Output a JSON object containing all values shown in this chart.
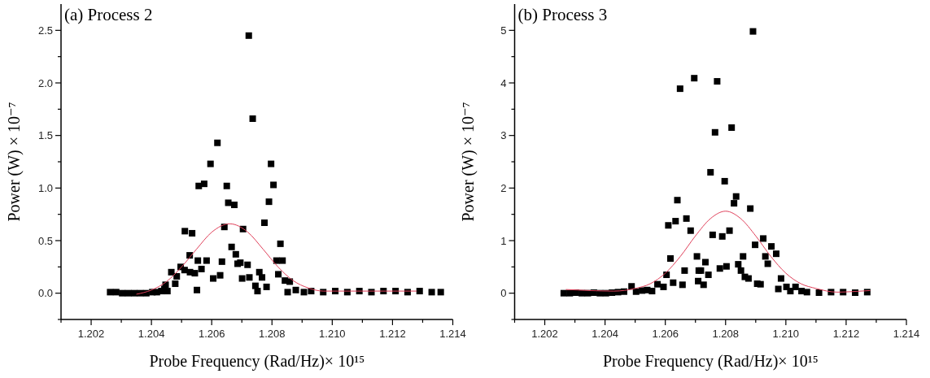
{
  "chart_data": [
    {
      "type": "scatter",
      "title": "(a) Process 2",
      "xlabel": "Probe Frequency (Rad/Hz)× 10¹⁵",
      "ylabel": "Power (W) × 10⁻⁷",
      "marker": "square",
      "grid": false,
      "xlim": [
        1.201,
        1.214
      ],
      "xticks": [
        {
          "value": 1.201,
          "label": null
        },
        1.202,
        {
          "value": 1.203,
          "label": null
        },
        1.204,
        {
          "value": 1.205,
          "label": null
        },
        1.206,
        {
          "value": 1.207,
          "label": null
        },
        1.208,
        {
          "value": 1.209,
          "label": null
        },
        {
          "value": 1.21,
          "label": "1.210"
        },
        {
          "value": 1.211,
          "label": null
        },
        1.212,
        {
          "value": 1.213,
          "label": null
        },
        1.214
      ],
      "ylim": [
        -0.25,
        2.75
      ],
      "yticks": [
        {
          "value": -0.25,
          "label": null
        },
        {
          "value": 0,
          "label": "0.0"
        },
        {
          "value": 0.25,
          "label": null
        },
        0.5,
        {
          "value": 0.75,
          "label": null
        },
        {
          "value": 1,
          "label": "1.0"
        },
        {
          "value": 1.25,
          "label": null
        },
        1.5,
        {
          "value": 1.75,
          "label": null
        },
        {
          "value": 2,
          "label": "2.0"
        },
        {
          "value": 2.25,
          "label": null
        },
        2.5
      ],
      "series": [
        {
          "type": "scatter",
          "color": "#000000",
          "x": [
            1.20263,
            1.20283,
            1.20303,
            1.20323,
            1.20343,
            1.20363,
            1.20383,
            1.20403,
            1.20418,
            1.20433,
            1.20443,
            1.20447,
            1.20453,
            1.20466,
            1.20479,
            1.20484,
            1.20497,
            1.2051,
            1.20511,
            1.20527,
            1.20528,
            1.20535,
            1.20544,
            1.20551,
            1.20554,
            1.20557,
            1.20566,
            1.20575,
            1.20583,
            1.20596,
            1.20605,
            1.20619,
            1.20628,
            1.20634,
            1.20642,
            1.2065,
            1.20655,
            1.20666,
            1.20675,
            1.2068,
            1.20686,
            1.20695,
            1.20701,
            1.20704,
            1.20719,
            1.20723,
            1.20725,
            1.20736,
            1.20745,
            1.20752,
            1.20758,
            1.20767,
            1.20775,
            1.20782,
            1.2079,
            1.20797,
            1.20805,
            1.20815,
            1.20821,
            1.20828,
            1.20835,
            1.20843,
            1.20852,
            1.20859,
            1.20879,
            1.20906,
            1.2093,
            1.2097,
            1.2101,
            1.2105,
            1.2109,
            1.2113,
            1.2117,
            1.2121,
            1.2125,
            1.2129,
            1.2133,
            1.2136
          ],
          "values": [
            0.01,
            0.01,
            0,
            0,
            0,
            0,
            0,
            0.01,
            0.01,
            0.02,
            0.04,
            0.08,
            0.02,
            0.2,
            0.09,
            0.16,
            0.25,
            0.22,
            0.59,
            0.36,
            0.2,
            0.57,
            0.19,
            0.03,
            0.31,
            1.02,
            0.23,
            1.04,
            0.31,
            1.23,
            0.14,
            1.43,
            0.17,
            0.3,
            0.63,
            1.02,
            0.86,
            0.44,
            0.84,
            0.37,
            0.28,
            0.29,
            0.14,
            0.61,
            0.27,
            2.45,
            0.15,
            1.66,
            0.07,
            0.02,
            0.2,
            0.15,
            0.67,
            0.06,
            0.87,
            1.23,
            1.03,
            0.31,
            0.18,
            0.47,
            0.31,
            0.12,
            0.01,
            0.11,
            0.03,
            0.01,
            0.02,
            0.01,
            0.02,
            0.01,
            0.02,
            0.01,
            0.02,
            0.02,
            0.01,
            0.02,
            0.01,
            0.01
          ]
        },
        {
          "type": "line",
          "color": "#e0405a",
          "marker": "none",
          "line_style": "solid",
          "x": [
            1.2035,
            1.204,
            1.2045,
            1.205,
            1.2055,
            1.206,
            1.2066,
            1.2072,
            1.2077,
            1.2082,
            1.2087,
            1.2092,
            1.2097,
            1.2105,
            1.2115,
            1.2128
          ],
          "values": [
            -0.01,
            0.03,
            0.11,
            0.25,
            0.42,
            0.58,
            0.66,
            0.58,
            0.42,
            0.25,
            0.12,
            0.05,
            0.02,
            0.02,
            0.02,
            0.02
          ]
        }
      ]
    },
    {
      "type": "scatter",
      "title": "(b) Process 3",
      "xlabel": "Probe Frequency (Rad/Hz)× 10¹⁵",
      "ylabel": "Power (W) × 10⁻⁷",
      "marker": "square",
      "grid": false,
      "xlim": [
        1.201,
        1.214
      ],
      "xticks": [
        {
          "value": 1.201,
          "label": null
        },
        1.202,
        {
          "value": 1.203,
          "label": null
        },
        1.204,
        {
          "value": 1.205,
          "label": null
        },
        1.206,
        {
          "value": 1.207,
          "label": null
        },
        1.208,
        {
          "value": 1.209,
          "label": null
        },
        {
          "value": 1.21,
          "label": "1.210"
        },
        {
          "value": 1.211,
          "label": null
        },
        1.212,
        {
          "value": 1.213,
          "label": null
        },
        1.214
      ],
      "ylim": [
        -0.5,
        5.5
      ],
      "yticks": [
        {
          "value": -0.5,
          "label": null
        },
        0,
        {
          "value": 0.5,
          "label": null
        },
        1,
        {
          "value": 1.5,
          "label": null
        },
        2,
        {
          "value": 2.5,
          "label": null
        },
        3,
        {
          "value": 3.5,
          "label": null
        },
        4,
        {
          "value": 4.5,
          "label": null
        },
        5
      ],
      "series": [
        {
          "type": "scatter",
          "color": "#000000",
          "x": [
            1.20263,
            1.20283,
            1.20303,
            1.20323,
            1.20343,
            1.20363,
            1.20383,
            1.20403,
            1.20423,
            1.20443,
            1.20463,
            1.20488,
            1.20503,
            1.20523,
            1.2054,
            1.20556,
            1.20574,
            1.20594,
            1.20604,
            1.2061,
            1.20617,
            1.20626,
            1.20634,
            1.2064,
            1.20649,
            1.20657,
            1.20664,
            1.2067,
            1.20684,
            1.20696,
            1.20705,
            1.20709,
            1.20711,
            1.20718,
            1.20727,
            1.20733,
            1.20743,
            1.2075,
            1.20757,
            1.20765,
            1.20772,
            1.20781,
            1.20789,
            1.20797,
            1.20803,
            1.20813,
            1.2082,
            1.20828,
            1.20835,
            1.20842,
            1.20851,
            1.20858,
            1.20864,
            1.20876,
            1.20882,
            1.20891,
            1.20898,
            1.20905,
            1.20916,
            1.20925,
            1.20932,
            1.2094,
            1.20952,
            1.20968,
            1.20975,
            1.20984,
            1.21002,
            1.21015,
            1.21032,
            1.21052,
            1.2107,
            1.2111,
            1.2115,
            1.2119,
            1.2123,
            1.2127
          ],
          "values": [
            0,
            0,
            0.01,
            0,
            0,
            0.01,
            0,
            0,
            0.01,
            0.02,
            0.03,
            0.13,
            0.03,
            0.05,
            0.06,
            0.04,
            0.17,
            0.12,
            0.35,
            1.29,
            0.66,
            0.2,
            1.37,
            1.77,
            3.89,
            0.16,
            0.43,
            1.42,
            1.19,
            4.09,
            0.7,
            0.23,
            0.43,
            0.43,
            0.16,
            0.59,
            0.35,
            2.3,
            1.11,
            3.06,
            4.03,
            0.47,
            1.08,
            2.13,
            0.51,
            1.19,
            3.15,
            1.71,
            1.84,
            0.55,
            0.43,
            0.7,
            0.31,
            0.28,
            1.61,
            4.98,
            0.92,
            0.18,
            0.17,
            1.04,
            0.7,
            0.56,
            0.89,
            0.75,
            0.08,
            0.28,
            0.12,
            0.04,
            0.12,
            0.04,
            0.02,
            0.01,
            0.02,
            0.02,
            0.01,
            0.02
          ]
        },
        {
          "type": "line",
          "color": "#e0405a",
          "marker": "none",
          "line_style": "solid",
          "x": [
            1.2027,
            1.2035,
            1.2043,
            1.205,
            1.2055,
            1.206,
            1.2065,
            1.207,
            1.2075,
            1.208,
            1.2085,
            1.209,
            1.2095,
            1.21,
            1.2105,
            1.211,
            1.2117,
            1.2122,
            1.2128
          ],
          "values": [
            0.07,
            0.05,
            0.04,
            0.09,
            0.18,
            0.38,
            0.7,
            1.09,
            1.42,
            1.56,
            1.42,
            1.09,
            0.7,
            0.38,
            0.18,
            0.09,
            0.02,
            0.03,
            0.05
          ]
        }
      ]
    }
  ]
}
